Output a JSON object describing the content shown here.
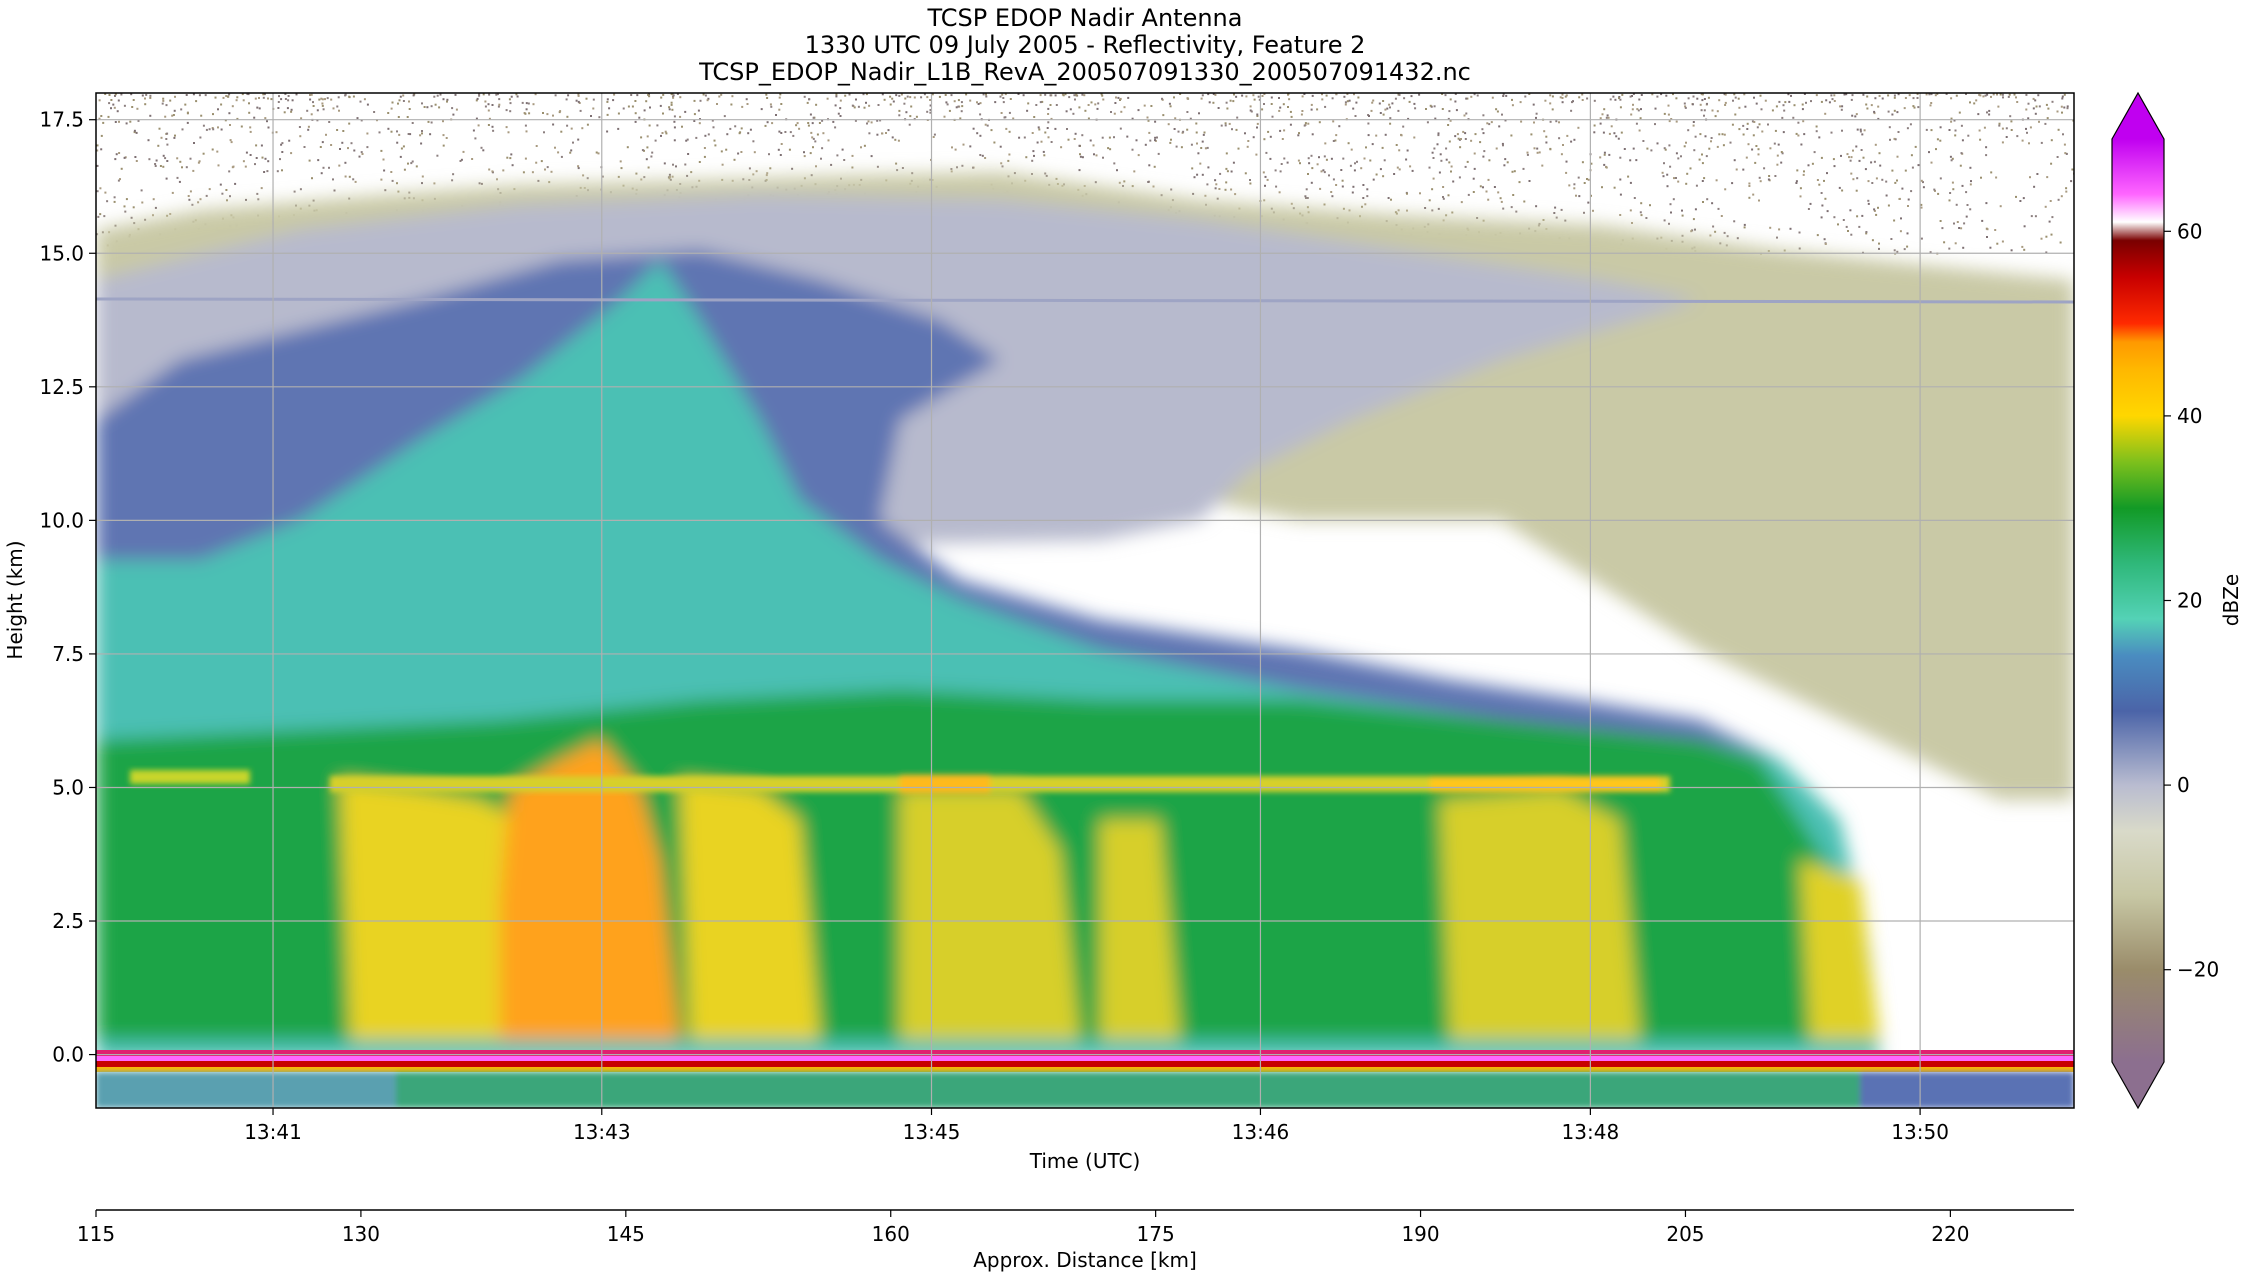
{
  "figure": {
    "title_lines": [
      "TCSP EDOP Nadir Antenna",
      "1330 UTC 09 July 2005 - Reflectivity, Feature 2",
      "TCSP_EDOP_Nadir_L1B_RevA_200507091330_200507091432.nc"
    ]
  },
  "chart_data": {
    "type": "heatmap",
    "title": "TCSP EDOP Nadir Antenna",
    "subtitle": "1330 UTC 09 July 2005 - Reflectivity, Feature 2",
    "filename": "TCSP_EDOP_Nadir_L1B_RevA_200507091330_200507091432.nc",
    "grid": true,
    "x_axis": {
      "label": "Time (UTC)",
      "ticks": [
        "13:41",
        "13:43",
        "13:45",
        "13:46",
        "13:48",
        "13:50"
      ]
    },
    "y_axis": {
      "label": "Height (km)",
      "range": [
        -1.0,
        18.0
      ],
      "ticks": [
        0.0,
        2.5,
        5.0,
        7.5,
        10.0,
        12.5,
        15.0,
        17.5
      ],
      "tick_labels": [
        "0.0",
        "2.5",
        "5.0",
        "7.5",
        "10.0",
        "12.5",
        "15.0",
        "17.5"
      ]
    },
    "secondary_x_axis": {
      "label": "Approx. Distance [km]",
      "range": [
        115,
        227
      ],
      "ticks": [
        115,
        130,
        145,
        160,
        175,
        190,
        205,
        220
      ],
      "tick_labels": [
        "115",
        "130",
        "145",
        "160",
        "175",
        "190",
        "205",
        "220"
      ]
    },
    "colorbar": {
      "label": "dBZe",
      "range": [
        -30,
        70
      ],
      "extend": "both",
      "ticks": [
        -20,
        0,
        20,
        40,
        60
      ],
      "tick_labels": [
        "−20",
        "0",
        "20",
        "40",
        "60"
      ],
      "color_stops": [
        {
          "value": -30,
          "color": "#8c6f8f"
        },
        {
          "value": -20,
          "color": "#9a8c6a"
        },
        {
          "value": -12,
          "color": "#c7c7a4"
        },
        {
          "value": -5,
          "color": "#d9dac9"
        },
        {
          "value": 0,
          "color": "#b9bcd0"
        },
        {
          "value": 8,
          "color": "#4b64a8"
        },
        {
          "value": 14,
          "color": "#4a8cc0"
        },
        {
          "value": 18,
          "color": "#54d2b6"
        },
        {
          "value": 24,
          "color": "#2fb87a"
        },
        {
          "value": 30,
          "color": "#129a26"
        },
        {
          "value": 35,
          "color": "#7dc01c"
        },
        {
          "value": 40,
          "color": "#ffd700"
        },
        {
          "value": 45,
          "color": "#ffb800"
        },
        {
          "value": 48,
          "color": "#ff9900"
        },
        {
          "value": 50,
          "color": "#ff2a00"
        },
        {
          "value": 55,
          "color": "#c80000"
        },
        {
          "value": 59,
          "color": "#7a0000"
        },
        {
          "value": 61,
          "color": "#ffffff"
        },
        {
          "value": 64,
          "color": "#ff66ff"
        },
        {
          "value": 70,
          "color": "#c000f0"
        }
      ]
    },
    "features": {
      "melting_layer_km": 5.0,
      "surface_km": 0.0,
      "echo_top_km": 16.2,
      "horizontal_artifact_km": 14.1,
      "max_reflectivity_dbze": 48
    }
  }
}
